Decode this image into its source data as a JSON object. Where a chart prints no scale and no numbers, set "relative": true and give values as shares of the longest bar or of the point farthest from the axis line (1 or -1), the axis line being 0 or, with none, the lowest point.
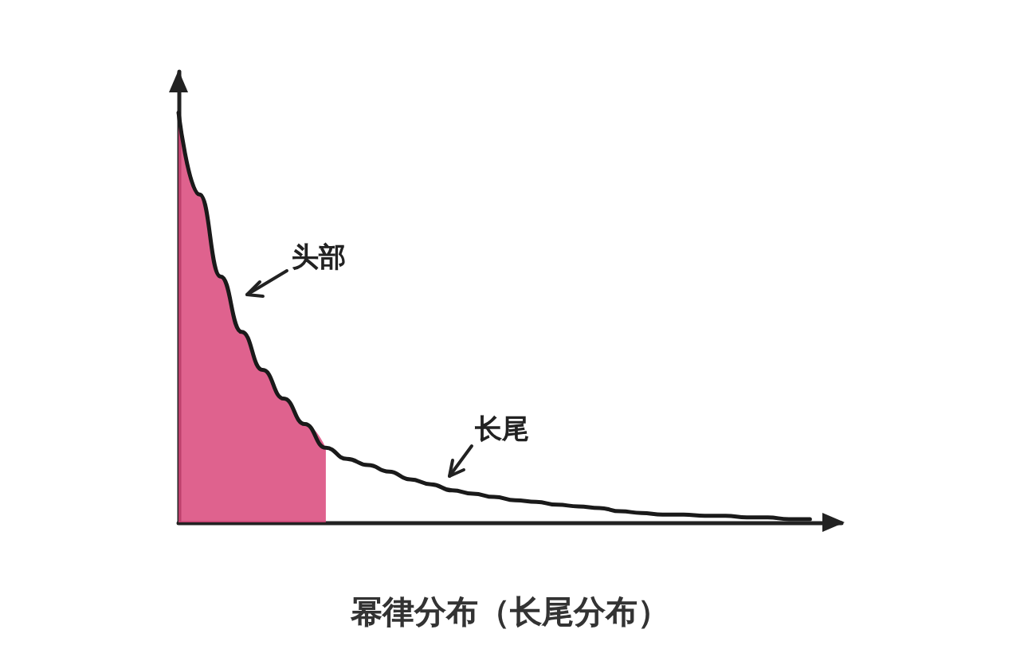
{
  "chart_data": {
    "type": "line",
    "title": "幂律分布（长尾分布）",
    "relative": true,
    "categories": [
      null,
      null,
      null,
      null,
      null,
      null,
      null,
      null,
      null,
      null,
      null,
      null,
      null,
      null,
      null,
      null,
      null,
      null,
      null,
      null,
      null,
      null,
      null,
      null,
      null,
      null,
      null,
      null,
      null,
      null,
      null
    ],
    "series": [
      {
        "type": "area",
        "color": "#d9467a",
        "values": [
          1.0,
          0.8,
          0.6,
          0.465,
          0.372,
          0.302,
          0.24,
          0.182,
          null,
          null,
          null,
          null,
          null,
          null,
          null,
          null,
          null,
          null,
          null,
          null,
          null,
          null,
          null,
          null,
          null,
          null,
          null,
          null,
          null,
          null,
          null
        ]
      },
      {
        "color": "#1a1a1a",
        "values": [
          1.0,
          0.8,
          0.6,
          0.465,
          0.372,
          0.302,
          0.24,
          0.182,
          0.155,
          0.14,
          0.124,
          0.105,
          0.093,
          0.078,
          0.07,
          0.062,
          0.054,
          0.05,
          0.043,
          0.039,
          0.035,
          0.027,
          0.023,
          0.019,
          0.019,
          0.016,
          0.016,
          0.012,
          0.012,
          0.008,
          0.008
        ]
      }
    ],
    "annotations": [
      "头部",
      "长尾"
    ],
    "grid": false,
    "marker": "none",
    "line_style": "solid"
  }
}
